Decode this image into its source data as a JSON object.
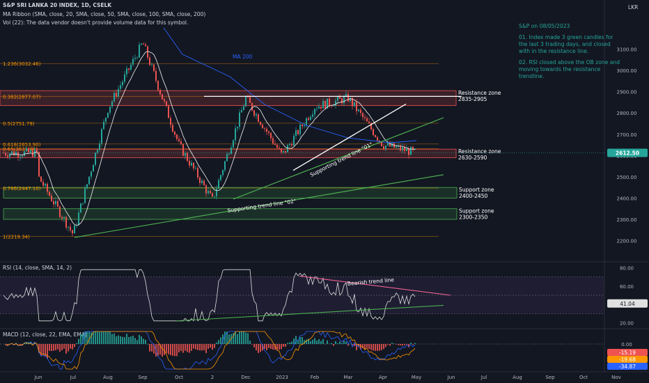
{
  "header": {
    "title": "S&P SRI LANKA 20 INDEX, 1D, CSELK",
    "ribbon": "MA Ribbon (SMA, close, 20, SMA, close, 50, SMA, close, 100, SMA, close, 200)",
    "vol": "Vol (22): The data vendor doesn't provide volume data for this symbol.",
    "currency": "LKR"
  },
  "notes": {
    "title": "S&P on 08/05/2023",
    "n1": "01. Index made 3 green candles for the last 3 trading days, and closed with in the resistance line.",
    "n2": "02. RSI closed above the OB zone and moving towards the resistance trendline."
  },
  "colors": {
    "bg": "#131722",
    "up": "#26a69a",
    "down": "#ef5350",
    "green_line": "#4caf50",
    "ma200": "#2962ff",
    "fib": "#ff9800"
  },
  "chart_data": [
    {
      "type": "candlestick",
      "title": "S&P SRI LANKA 20 INDEX, 1D, CSELK",
      "ylabel": "LKR",
      "ylim": [
        2120,
        3200
      ],
      "y_ticks": [
        "3100.00",
        "3000.00",
        "2900.00",
        "2800.00",
        "2700.00",
        "2600.00",
        "2500.00",
        "2400.00",
        "2300.00",
        "2200.00"
      ],
      "x_ticks": [
        "Jun",
        "Jul",
        "Aug",
        "Sep",
        "Oct",
        "2",
        "Dec",
        "2023",
        "Feb",
        "Mar",
        "Apr",
        "May",
        "Jun",
        "Jul",
        "Aug",
        "Sep",
        "Oct",
        "Nov"
      ],
      "last_price": "2612.50",
      "price_path": [
        {
          "x": "Jun",
          "y": 2500
        },
        {
          "x": "Jul",
          "y": 2230
        },
        {
          "x": "Aug",
          "y": 2820
        },
        {
          "x": "Sep",
          "y": 3130
        },
        {
          "x": "Oct",
          "y": 2650
        },
        {
          "x": "2",
          "y": 2390
        },
        {
          "x": "Dec",
          "y": 2870
        },
        {
          "x": "2023",
          "y": 2600
        },
        {
          "x": "Feb",
          "y": 2830
        },
        {
          "x": "Mar",
          "y": 2870
        },
        {
          "x": "Apr",
          "y": 2650
        },
        {
          "x": "May",
          "y": 2612.5
        }
      ],
      "fib_levels": [
        {
          "label": "1.236(3032.46)",
          "value": 3032.46
        },
        {
          "label": "0.382(2877.07)",
          "value": 2877.07
        },
        {
          "label": "0.5(2751.79)",
          "value": 2751.79
        },
        {
          "label": "0.618(2653.90)",
          "value": 2653.9
        },
        {
          "label": "0.65(2631.84)",
          "value": 2631.84
        },
        {
          "label": "0.786(2447.10)",
          "value": 2447.1
        },
        {
          "label": "1(2219.34)",
          "value": 2219.34
        }
      ],
      "zones": [
        {
          "label": "Resistance zone",
          "range": "2835-2905",
          "low": 2835,
          "high": 2905,
          "kind": "resistance"
        },
        {
          "label": "Resistance zone",
          "range": "2630-2590",
          "low": 2590,
          "high": 2630,
          "kind": "resistance"
        },
        {
          "label": "Support zone",
          "range": "2400-2450",
          "low": 2400,
          "high": 2450,
          "kind": "support"
        },
        {
          "label": "Support zone",
          "range": "2300-2350",
          "low": 2300,
          "high": 2350,
          "kind": "support"
        }
      ],
      "annotations": [
        "MA 200",
        "Supporting trend line \"01\"",
        "Supporting trend line \"02\""
      ]
    },
    {
      "type": "line",
      "title": "RSI (14, close, SMA, 14, 2)",
      "ylim": [
        15,
        85
      ],
      "y_ticks": [
        "80.00",
        "60.00",
        "40.00",
        "20.00"
      ],
      "last_value": "41.04",
      "annotation": "Bearish trend line"
    },
    {
      "type": "bar",
      "title": "MACD (12, close, 22, EMA, EMA)",
      "y_ticks": [
        "0.00"
      ],
      "last_values": [
        "-15.19",
        "-19.68",
        "-34.87"
      ]
    }
  ]
}
